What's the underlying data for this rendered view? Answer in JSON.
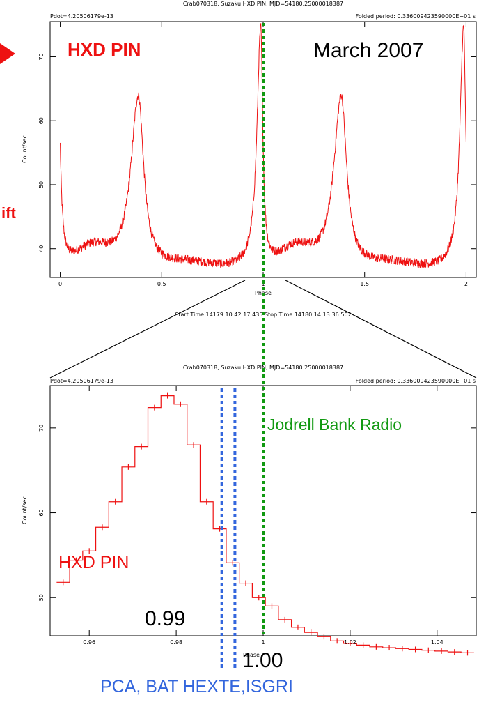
{
  "chart_data": [
    {
      "type": "line",
      "header": "Crab070318, Suzaku HXD PIN, MJD=54180.25000018387",
      "pdot_label": "Pdot=4.20506179e-13",
      "period_label": "Folded period: 0.336009423590000E−01 s",
      "xlabel": "Phase",
      "ylabel": "Count/sec",
      "xlim": [
        -0.05,
        2.05
      ],
      "ylim": [
        35.5,
        75.5
      ],
      "x_ticks": [
        0,
        0.5,
        1,
        1.5,
        2
      ],
      "x_tick_labels": [
        "0",
        "0.5",
        "1",
        "1.5",
        "2"
      ],
      "y_ticks": [
        40,
        50,
        60,
        70
      ],
      "y_tick_labels": [
        "40",
        "50",
        "60",
        "70"
      ],
      "time_range_label": "Start Time 14179 10:42:17:435   Stop Time 14180 14:13:36:502",
      "instrument_label": "HXD PIN",
      "date_label": "March 2007",
      "series_color": "#ee1111",
      "profile_model": {
        "baseline": 36.8,
        "main_peak": {
          "phase": 0.988,
          "peak": 74.4
        },
        "second_peak": {
          "phase": 0.385,
          "peak": 63.8
        },
        "noise_amplitude": 0.7
      }
    },
    {
      "type": "line",
      "header": "Crab070318, Suzaku HXD PIN, MJD=54180.25000018387",
      "pdot_label": "Pdot=4.20506179e-13",
      "period_label": "Folded period: 0.336009423590000E−01 s",
      "xlabel": "Phase",
      "ylabel": "Count/sec",
      "xlim": [
        0.951,
        1.049
      ],
      "ylim": [
        45.5,
        75.0
      ],
      "x_ticks": [
        0.96,
        0.98,
        1.0,
        1.02,
        1.04
      ],
      "x_tick_labels": [
        "0.96",
        "0.98",
        "1",
        "1.02",
        "1.04"
      ],
      "y_ticks": [
        50,
        60,
        70
      ],
      "y_tick_labels": [
        "50",
        "60",
        "70"
      ],
      "instrument_label": "HXD PIN",
      "series_color": "#ee1111",
      "x": [
        0.954,
        0.957,
        0.96,
        0.963,
        0.966,
        0.969,
        0.972,
        0.975,
        0.978,
        0.981,
        0.984,
        0.987,
        0.99,
        0.993,
        0.996,
        0.999,
        1.002,
        1.005,
        1.008,
        1.011,
        1.014,
        1.017,
        1.02,
        1.023,
        1.026,
        1.029,
        1.032,
        1.035,
        1.038,
        1.041,
        1.044,
        1.047
      ],
      "y": [
        51.8,
        54.4,
        55.5,
        58.3,
        61.3,
        65.4,
        67.8,
        72.4,
        73.8,
        72.8,
        68.0,
        61.3,
        58.1,
        54.1,
        51.7,
        50.0,
        49.0,
        47.4,
        46.5,
        45.9,
        45.4,
        44.9,
        44.6,
        44.4,
        44.2,
        44.1,
        44.0,
        43.9,
        43.8,
        43.7,
        43.6,
        43.5
      ],
      "bin_half_width": 0.0015
    }
  ],
  "annotations": {
    "arrow_color": "#ee1111",
    "left_cut_text": "ift",
    "radio_label": "Jodrell Bank Radio",
    "radio_phase": 1.0,
    "radio_color": "#119911",
    "xray_phases": [
      0.9905,
      0.9935
    ],
    "xray_color": "#3366dd",
    "label_099": "0.99",
    "label_100": "1.00",
    "instruments_label": "PCA, BAT HEXTE,ISGRI"
  }
}
